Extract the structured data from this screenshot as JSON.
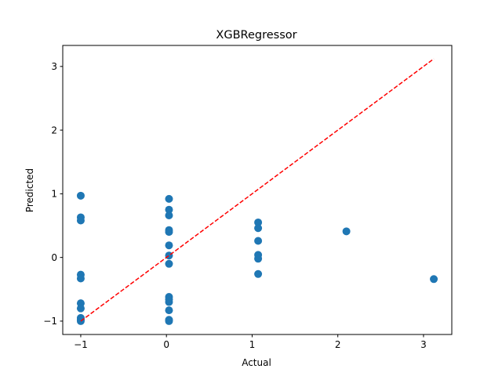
{
  "chart_data": {
    "type": "scatter",
    "title": "XGBRegressor",
    "xlabel": "Actual",
    "ylabel": "Predicted",
    "xlim": [
      -1.21,
      3.33
    ],
    "ylim": [
      -1.21,
      3.33
    ],
    "xticks": [
      -1,
      0,
      1,
      2,
      3
    ],
    "yticks": [
      -1,
      0,
      1,
      2,
      3
    ],
    "xtick_labels": [
      "−1",
      "0",
      "1",
      "2",
      "3"
    ],
    "ytick_labels": [
      "−1",
      "0",
      "1",
      "2",
      "3"
    ],
    "grid": false,
    "point_color": "#1f77b4",
    "reference_line": {
      "x": [
        -1,
        3.12
      ],
      "y": [
        -1,
        3.12
      ],
      "color": "#ff0000",
      "style": "dashed"
    },
    "series": [
      {
        "x": [
          -1,
          -1,
          -1,
          -1,
          -1,
          -1,
          -1,
          -1,
          -1,
          -1,
          0.03,
          0.03,
          0.03,
          0.03,
          0.03,
          0.03,
          0.03,
          0.03,
          0.03,
          0.03,
          0.03,
          0.03,
          0.03,
          0.03,
          1.07,
          1.07,
          1.07,
          1.07,
          1.07,
          1.07,
          2.1,
          3.12
        ],
        "y": [
          0.97,
          0.63,
          0.58,
          -0.27,
          -0.33,
          -0.72,
          -0.8,
          -0.95,
          -0.98,
          -1.0,
          0.92,
          0.75,
          0.66,
          0.43,
          0.4,
          0.19,
          0.03,
          -0.1,
          -0.62,
          -0.66,
          -0.7,
          -0.83,
          -0.98,
          -1.0,
          0.55,
          0.46,
          0.26,
          0.04,
          -0.02,
          -0.26,
          0.41,
          -0.34
        ]
      }
    ]
  }
}
